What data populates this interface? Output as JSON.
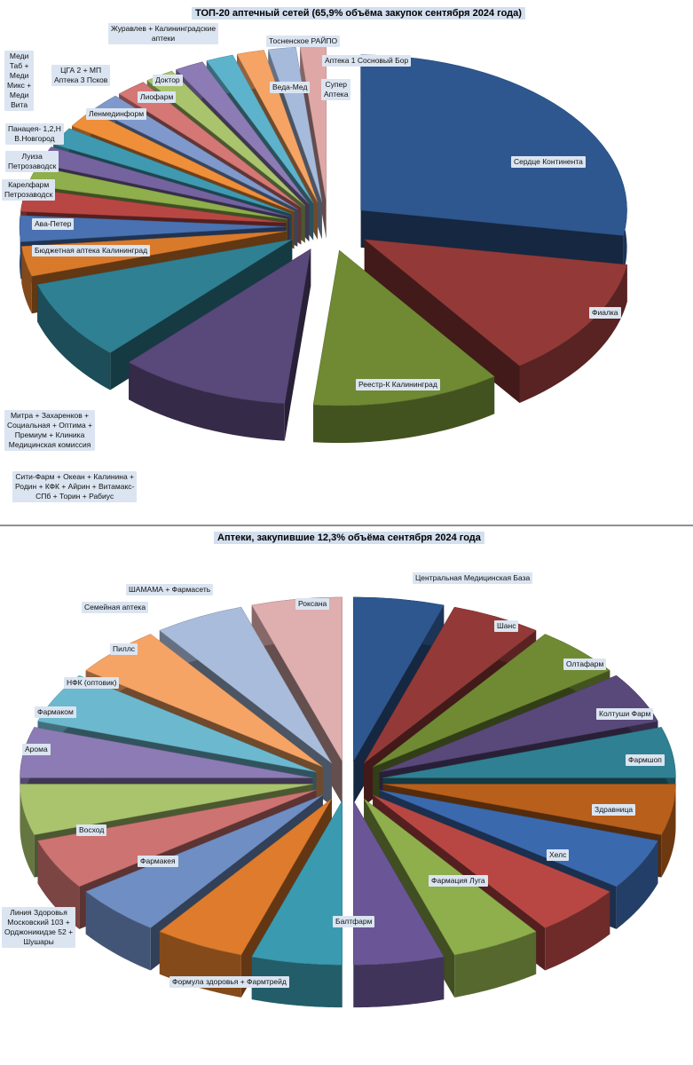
{
  "chart_data": [
    {
      "type": "pie",
      "title": "ТОП-20 аптечный сетей (65,9% объёма закупок сентября 2024 года)",
      "slices": [
        {
          "label": "Сердце Континента",
          "value": 26.5,
          "color": "#2e5790"
        },
        {
          "label": "Фиалка",
          "value": 12.0,
          "color": "#933a38"
        },
        {
          "label": "Реестр-К Калининград",
          "value": 11.0,
          "color": "#6f8a33"
        },
        {
          "label": "Сити-Фарм + Океан + Калинина + Родин + КФК + Айрин + Витамакс-СПб + Торин + Рабиус",
          "value": 10.0,
          "color": "#59487a"
        },
        {
          "label": "Митра + Захаренков + Социальная + Оптима + Премиум + Клиника Медицинская комиссия",
          "value": 8.0,
          "color": "#2f8092"
        },
        {
          "label": "Бюджетная аптека Калининград",
          "value": 3.0,
          "color": "#d97a2b"
        },
        {
          "label": "Ава-Петер",
          "value": 2.6,
          "color": "#4a72b2"
        },
        {
          "label": "Карелфарм Петрозаводск",
          "value": 2.3,
          "color": "#b84744"
        },
        {
          "label": "Луиза Петрозаводск",
          "value": 1.9,
          "color": "#8fae4c"
        },
        {
          "label": "Панацея- 1,2,Н В.Новгород",
          "value": 1.8,
          "color": "#7563a0"
        },
        {
          "label": "Меди Таб + Меди Микс + Меди Вита",
          "value": 1.8,
          "color": "#3f9ab1"
        },
        {
          "label": "ЦГА 2 + МП Аптека 3 Псков",
          "value": 1.8,
          "color": "#f08f3a"
        },
        {
          "label": "Ленмединформ",
          "value": 1.8,
          "color": "#7f99cc"
        },
        {
          "label": "Лиофарм",
          "value": 1.8,
          "color": "#d57775"
        },
        {
          "label": "Доктор",
          "value": 1.7,
          "color": "#a9c46d"
        },
        {
          "label": "Журавлев + Калининградские аптеки",
          "value": 1.7,
          "color": "#8c7bb4"
        },
        {
          "label": "Тосненское РАЙПО",
          "value": 1.6,
          "color": "#5db3cb"
        },
        {
          "label": "Веда-Мед",
          "value": 1.6,
          "color": "#f6a465"
        },
        {
          "label": "Аптека 1 Сосновый Бор",
          "value": 1.6,
          "color": "#a6bbdc"
        },
        {
          "label": "Супер Аптека",
          "value": 1.5,
          "color": "#dfa8a7"
        }
      ]
    },
    {
      "type": "pie",
      "title": "Аптеки, закупившие 12,3% объёма сентября 2024 года",
      "slices": [
        {
          "label": "Центральная Медицинская База",
          "value": 5.3,
          "color": "#2e5790"
        },
        {
          "label": "Шанс",
          "value": 5.3,
          "color": "#933a38"
        },
        {
          "label": "Олтафарм",
          "value": 5.3,
          "color": "#6f8a33"
        },
        {
          "label": "Колтуши Фарм",
          "value": 5.3,
          "color": "#59487a"
        },
        {
          "label": "Фармшоп",
          "value": 5.3,
          "color": "#2f8092"
        },
        {
          "label": "Здравница",
          "value": 5.3,
          "color": "#b85f1c"
        },
        {
          "label": "Хелс",
          "value": 5.3,
          "color": "#3b69ad"
        },
        {
          "label": "Фармация Луга",
          "value": 5.3,
          "color": "#b84744"
        },
        {
          "label": "Балтфарм",
          "value": 5.3,
          "color": "#8fae4c"
        },
        {
          "label": "Формула здоровья + Фармтрейд",
          "value": 5.3,
          "color": "#6a5696"
        },
        {
          "label": "Фармакея",
          "value": 5.3,
          "color": "#3a9bb0"
        },
        {
          "label": "Линия Здоровья Московский 103 + Орджоникидзе 52 + Шушары",
          "value": 5.3,
          "color": "#de7b2c"
        },
        {
          "label": "Восход",
          "value": 5.3,
          "color": "#6f8ec4"
        },
        {
          "label": "Арома",
          "value": 5.3,
          "color": "#cd7371"
        },
        {
          "label": "Фармаком",
          "value": 5.3,
          "color": "#a9c46d"
        },
        {
          "label": "НФК (оптовик)",
          "value": 5.3,
          "color": "#8c7bb4"
        },
        {
          "label": "Пиллс",
          "value": 5.3,
          "color": "#6cb9cf"
        },
        {
          "label": "Семейная аптека",
          "value": 5.3,
          "color": "#f6a465"
        },
        {
          "label": "ШАМАМА + Фармасеть",
          "value": 5.3,
          "color": "#a9bcdb"
        },
        {
          "label": "Роксана",
          "value": 5.3,
          "color": "#dfaeae"
        }
      ]
    }
  ],
  "labels1": [
    "Сердце Континента",
    "Фиалка",
    "Реестр-К Калининград",
    "Сити-Фарм + Океан + Калинина +\nРодин + КФК + Айрин + Витамакс-\nСПб + Торин + Рабиус",
    "Митра + Захаренков +\nСоциальная + Оптима +\nПремиум + Клиника\nМедицинская комиссия",
    "Бюджетная аптека Калининград",
    "Ава-Петер",
    "Карелфарм\nПетрозаводск",
    "Луиза\nПетрозаводск",
    "Панацея- 1,2,Н\nВ.Новгород",
    "Меди\nТаб +\nМеди\nМикс +\nМеди\nВита",
    "ЦГА 2 + МП\nАптека 3 Псков",
    "Ленмединформ",
    "Лиофарм",
    "Доктор",
    "Журавлев + Калининградские\nаптеки",
    "Тосненское РАЙПО",
    "Веда-Мед",
    "Аптека 1 Сосновый Бор",
    "Супер\nАптека"
  ],
  "labels2": [
    "Центральная Медицинская База",
    "Шанс",
    "Олтафарм",
    "Колтуши Фарм",
    "Фармшоп",
    "Здравница",
    "Хелс",
    "Фармация Луга",
    "Балтфарм",
    "Формула здоровья + Фармтрейд",
    "Фармакея",
    "Линия Здоровья\nМосковский 103 +\nОрджоникидзе 52 +\nШушары",
    "Восход",
    "Арома",
    "Фармаком",
    "НФК (оптовик)",
    "Пиллс",
    "Семейная аптека",
    "ШАМАМА + Фармасеть",
    "Роксана"
  ]
}
